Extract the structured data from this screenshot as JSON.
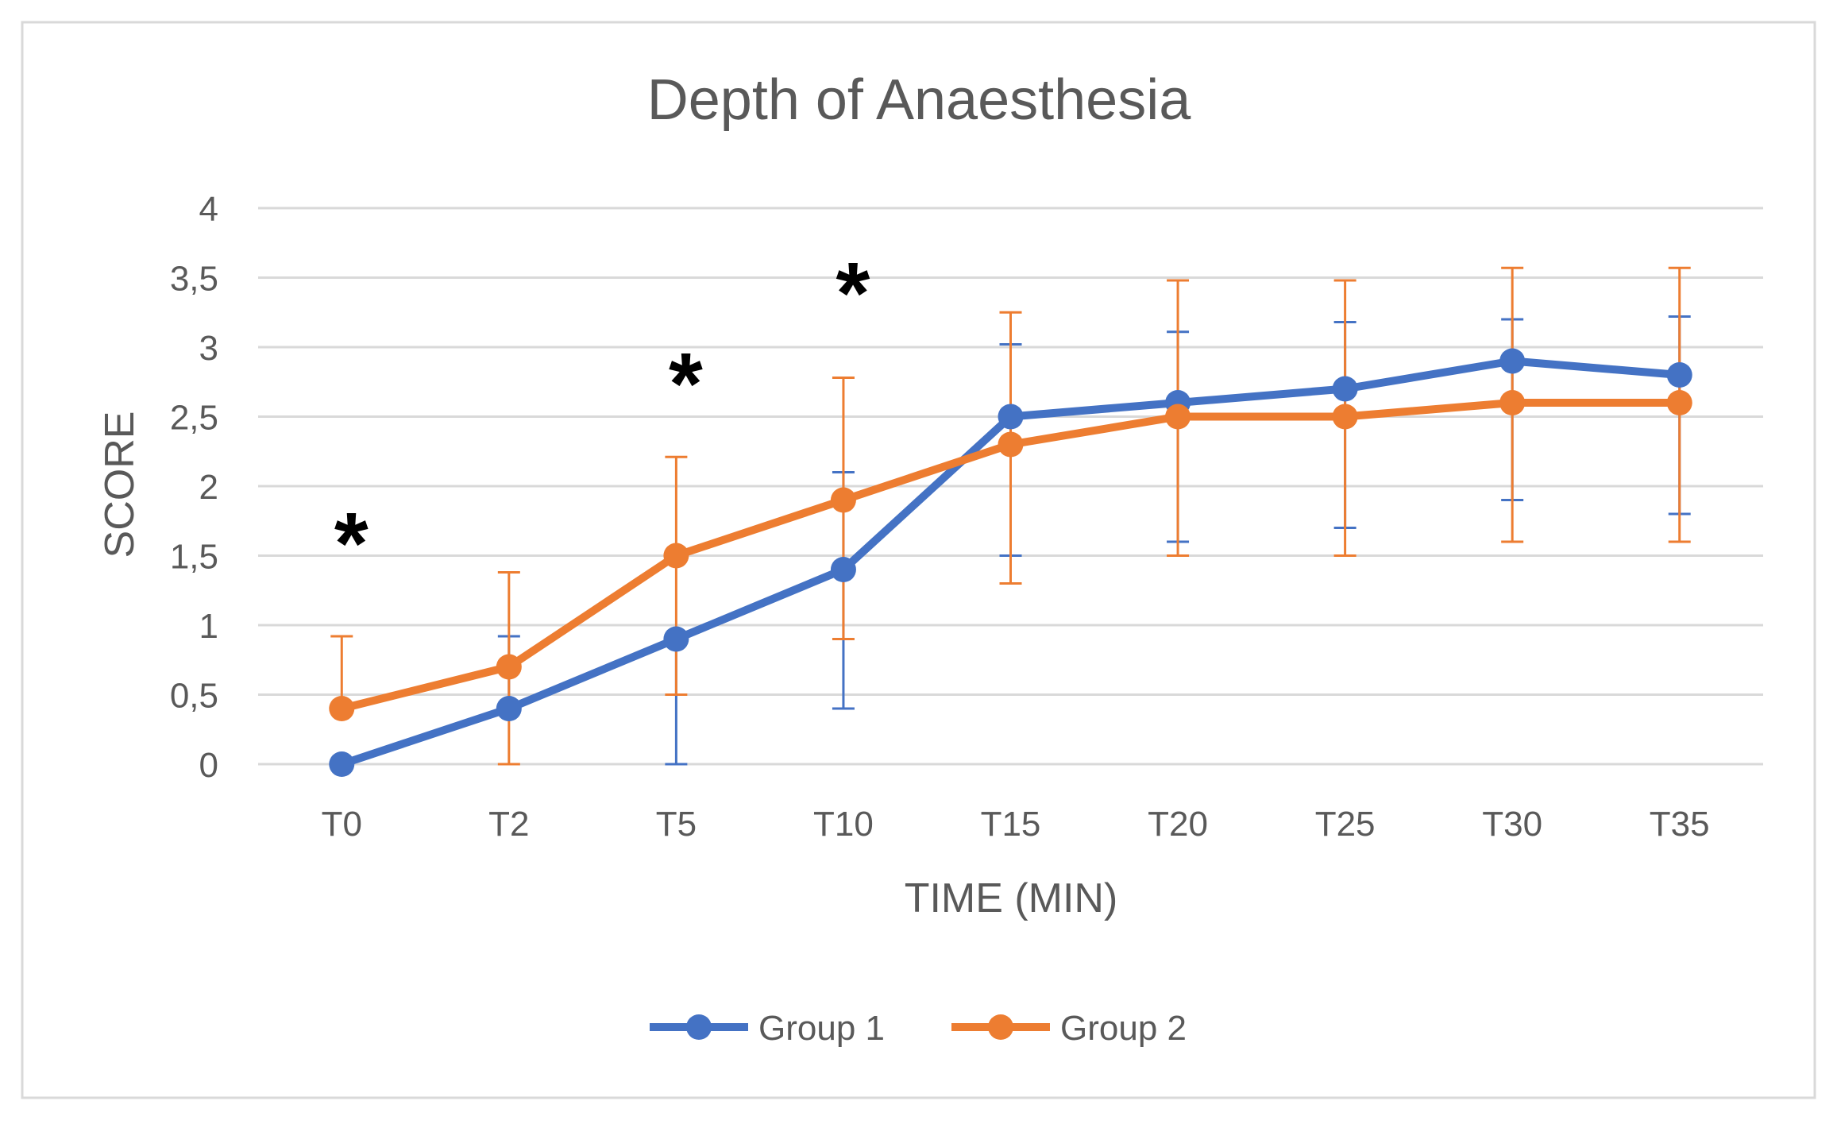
{
  "chart_data": {
    "type": "line",
    "title": "Depth of Anaesthesia",
    "xlabel": "TIME (MIN)",
    "ylabel": "SCORE",
    "categories": [
      "T0",
      "T2",
      "T5",
      "T10",
      "T15",
      "T20",
      "T25",
      "T30",
      "T35"
    ],
    "ylim": [
      0,
      4
    ],
    "yticks": [
      0,
      0.5,
      1,
      1.5,
      2,
      2.5,
      3,
      3.5,
      4
    ],
    "ytick_labels": [
      "0",
      "0,5",
      "1",
      "1,5",
      "2",
      "2,5",
      "3",
      "3,5",
      "4"
    ],
    "grid": true,
    "legend_position": "bottom-center",
    "series": [
      {
        "name": "Group 1",
        "color": "#4472C4",
        "values": [
          0,
          0.4,
          0.9,
          1.4,
          2.5,
          2.6,
          2.7,
          2.9,
          2.8
        ],
        "error_upper": [
          0,
          0.92,
          0.9,
          2.1,
          3.02,
          3.11,
          3.18,
          3.2,
          3.22
        ],
        "error_lower": [
          0,
          0.4,
          0,
          0.4,
          1.5,
          1.6,
          1.7,
          1.9,
          1.8
        ]
      },
      {
        "name": "Group 2",
        "color": "#ED7D31",
        "values": [
          0.4,
          0.7,
          1.5,
          1.9,
          2.3,
          2.5,
          2.5,
          2.6,
          2.6
        ],
        "error_upper": [
          0.92,
          1.38,
          2.21,
          2.78,
          3.25,
          3.48,
          3.48,
          3.57,
          3.57
        ],
        "error_lower": [
          0.4,
          0,
          0.5,
          0.9,
          1.3,
          1.5,
          1.5,
          1.6,
          1.6
        ]
      }
    ],
    "annotations": [
      {
        "text": "*",
        "category": "T0",
        "y": 1.6
      },
      {
        "text": "*",
        "category": "T5",
        "y": 2.75
      },
      {
        "text": "*",
        "category": "T10",
        "y": 3.4
      }
    ]
  }
}
